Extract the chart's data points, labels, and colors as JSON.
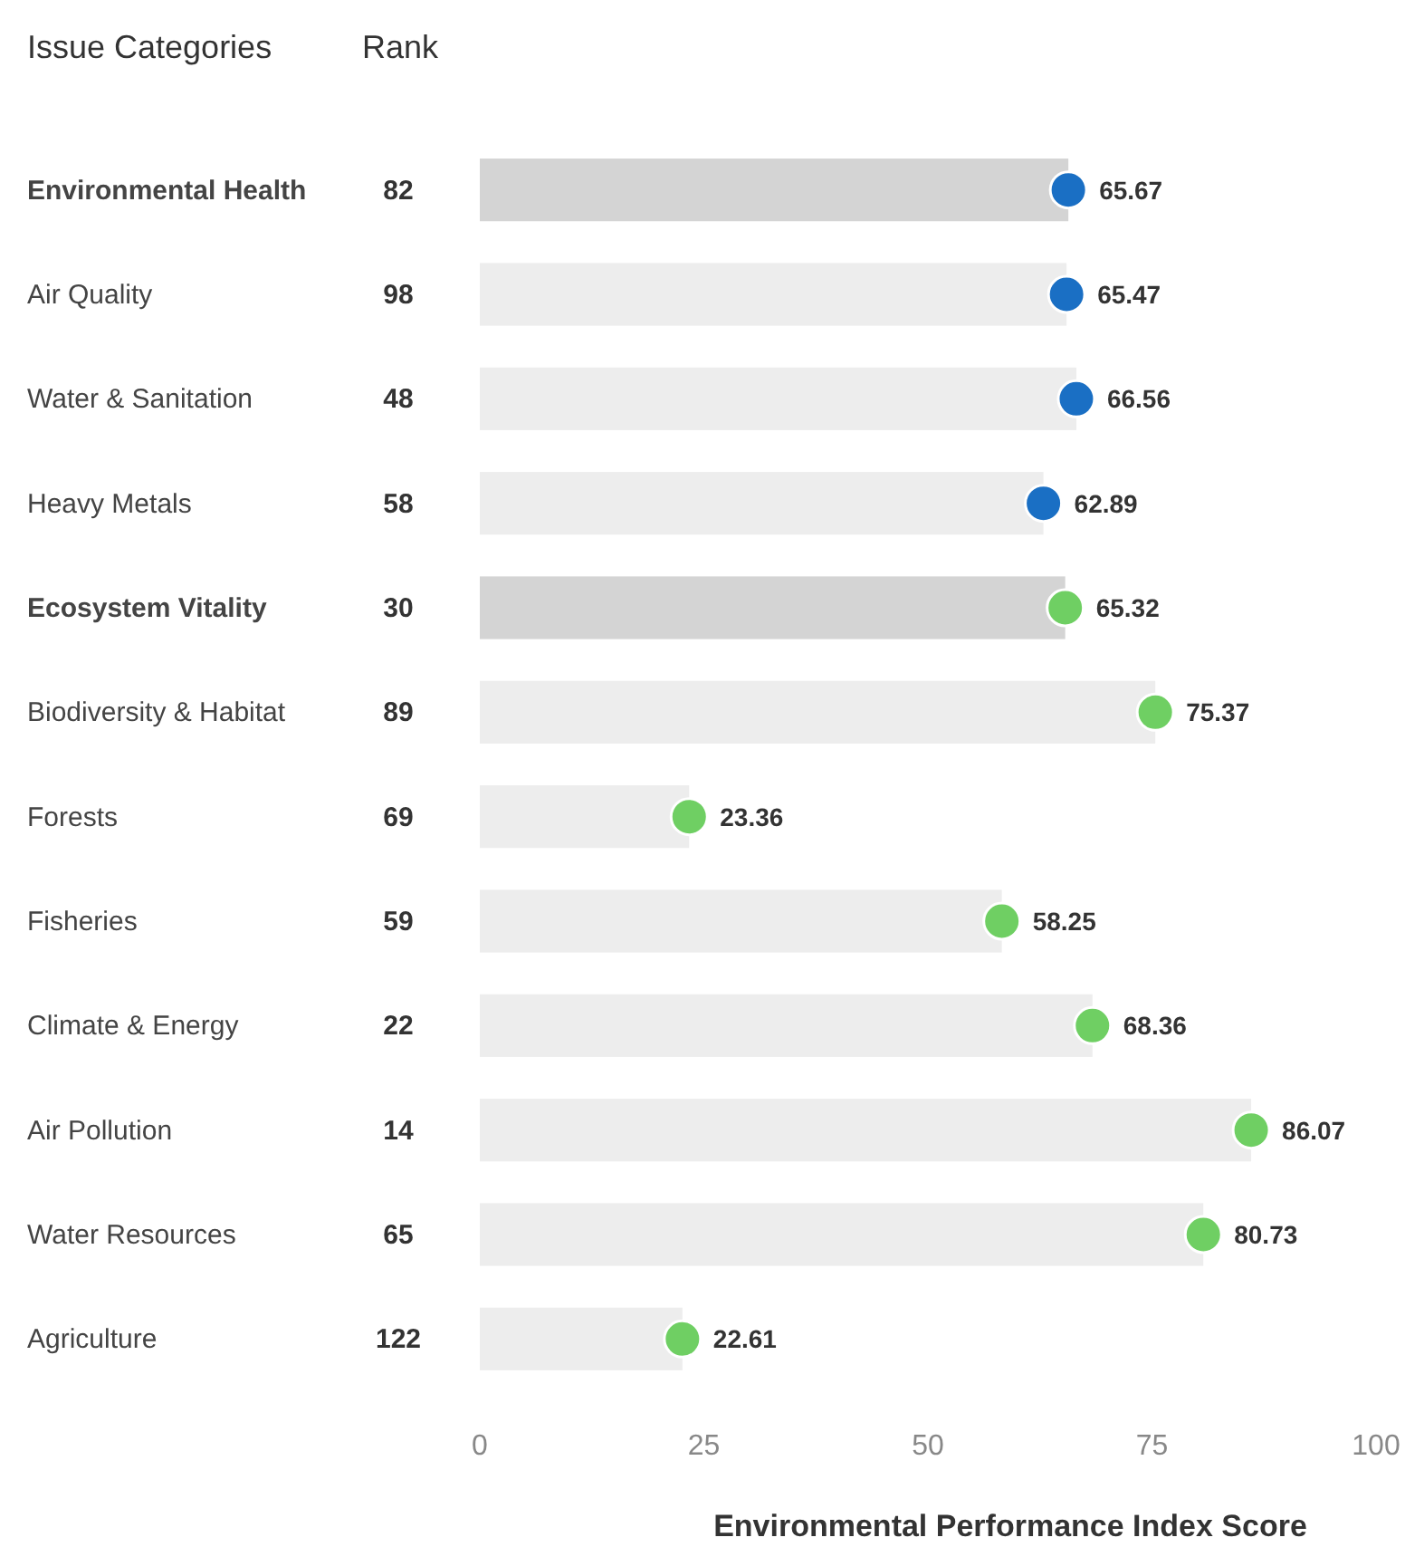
{
  "chart_data": {
    "type": "bar",
    "orientation": "horizontal",
    "ylabel": "Issue Categories",
    "y2label": "Rank",
    "xlabel": "Environmental Performance Index Score",
    "categories": [
      "Environmental Health",
      "Air Quality",
      "Water & Sanitation",
      "Heavy Metals",
      "Ecosystem Vitality",
      "Biodiversity & Habitat",
      "Forests",
      "Fisheries",
      "Climate & Energy",
      "Air Pollution",
      "Water Resources",
      "Agriculture"
    ],
    "y2_categories": [
      "82",
      "98",
      "48",
      "58",
      "30",
      "89",
      "69",
      "59",
      "22",
      "14",
      "65",
      "122"
    ],
    "series": [
      {
        "colors": [
          "#d4d4d4",
          "#ededed",
          "#ededed",
          "#ededed",
          "#d4d4d4",
          "#ededed",
          "#ededed",
          "#ededed",
          "#ededed",
          "#ededed",
          "#ededed",
          "#ededed"
        ],
        "values": [
          65.67,
          65.47,
          66.56,
          62.89,
          65.32,
          75.37,
          23.36,
          58.25,
          68.36,
          86.07,
          80.73,
          22.61
        ]
      },
      {
        "type": "scatter",
        "marker": "circle",
        "colors": [
          "#1a6fc4",
          "#1a6fc4",
          "#1a6fc4",
          "#1a6fc4",
          "#6fcf63",
          "#6fcf63",
          "#6fcf63",
          "#6fcf63",
          "#6fcf63",
          "#6fcf63",
          "#6fcf63",
          "#6fcf63"
        ],
        "values": [
          65.67,
          65.47,
          66.56,
          62.89,
          65.32,
          75.37,
          23.36,
          58.25,
          68.36,
          86.07,
          80.73,
          22.61
        ],
        "value_labels": [
          "65.67",
          "65.47",
          "66.56",
          "62.89",
          "65.32",
          "75.37",
          "23.36",
          "58.25",
          "68.36",
          "86.07",
          "80.73",
          "22.61"
        ]
      }
    ],
    "xlim": [
      0,
      100
    ],
    "xticks": [
      0,
      25,
      50,
      75,
      100
    ],
    "grid": false
  }
}
